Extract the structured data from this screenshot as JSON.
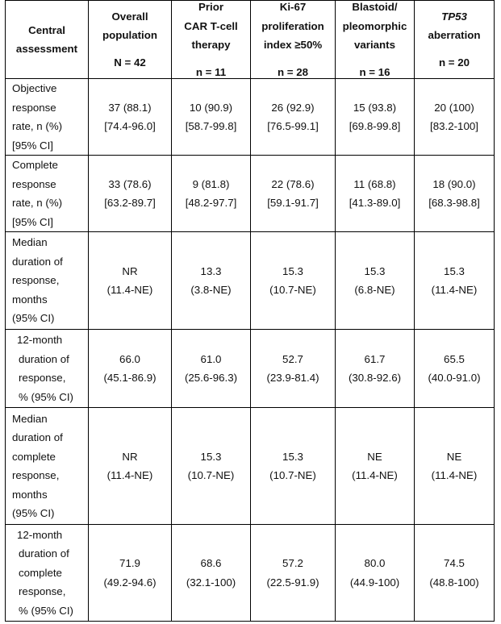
{
  "header": {
    "col0": [
      "Central",
      "assessment"
    ],
    "columns": [
      {
        "lines": [
          "Overall",
          "population"
        ],
        "n": "N = 42"
      },
      {
        "lines": [
          "Prior",
          "CAR T-cell",
          "therapy"
        ],
        "n": "n = 11"
      },
      {
        "lines": [
          "Ki-67",
          "proliferation",
          "index ≥50%"
        ],
        "n": "n = 28"
      },
      {
        "lines": [
          "Blastoid/",
          "pleomorphic",
          "variants"
        ],
        "n": "n = 16"
      },
      {
        "lines": [
          "TP53",
          "aberration"
        ],
        "n": "n = 20"
      }
    ]
  },
  "rows": [
    {
      "label": [
        "Objective",
        "response",
        "rate, n (%)",
        "[95% CI]"
      ],
      "values": [
        [
          "37 (88.1)",
          "[74.4-96.0]"
        ],
        [
          "10 (90.9)",
          "[58.7-99.8]"
        ],
        [
          "26 (92.9)",
          "[76.5-99.1]"
        ],
        [
          "15 (93.8)",
          "[69.8-99.8]"
        ],
        [
          "20 (100)",
          "[83.2-100]"
        ]
      ]
    },
    {
      "label": [
        "Complete",
        "response",
        "rate, n (%)",
        "[95% CI]"
      ],
      "values": [
        [
          "33 (78.6)",
          "[63.2-89.7]"
        ],
        [
          "9 (81.8)",
          "[48.2-97.7]"
        ],
        [
          "22 (78.6)",
          "[59.1-91.7]"
        ],
        [
          "11 (68.8)",
          "[41.3-89.0]"
        ],
        [
          "18 (90.0)",
          "[68.3-98.8]"
        ]
      ]
    },
    {
      "label": [
        "Median",
        "duration of",
        "response,",
        "months",
        "(95% CI)"
      ],
      "values": [
        [
          "NR",
          "(11.4-NE)"
        ],
        [
          "13.3",
          "(3.8-NE)"
        ],
        [
          "15.3",
          "(10.7-NE)"
        ],
        [
          "15.3",
          "(6.8-NE)"
        ],
        [
          "15.3",
          "(11.4-NE)"
        ]
      ]
    },
    {
      "label": [
        "12-month",
        "duration of",
        "response,",
        "% (95% CI)"
      ],
      "values": [
        [
          "66.0",
          "(45.1-86.9)"
        ],
        [
          "61.0",
          "(25.6-96.3)"
        ],
        [
          "52.7",
          "(23.9-81.4)"
        ],
        [
          "61.7",
          "(30.8-92.6)"
        ],
        [
          "65.5",
          "(40.0-91.0)"
        ]
      ]
    },
    {
      "label": [
        "Median",
        "duration of",
        "complete",
        "response,",
        "months",
        "(95% CI)"
      ],
      "values": [
        [
          "NR",
          "(11.4-NE)"
        ],
        [
          "15.3",
          "(10.7-NE)"
        ],
        [
          "15.3",
          "(10.7-NE)"
        ],
        [
          "NE",
          "(11.4-NE)"
        ],
        [
          "NE",
          "(11.4-NE)"
        ]
      ]
    },
    {
      "label": [
        "12-month",
        "duration of",
        "complete",
        "response,",
        "% (95% CI)"
      ],
      "values": [
        [
          "71.9",
          "(49.2-94.6)"
        ],
        [
          "68.6",
          "(32.1-100)"
        ],
        [
          "57.2",
          "(22.5-91.9)"
        ],
        [
          "80.0",
          "(44.9-100)"
        ],
        [
          "74.5",
          "(48.8-100)"
        ]
      ]
    }
  ]
}
